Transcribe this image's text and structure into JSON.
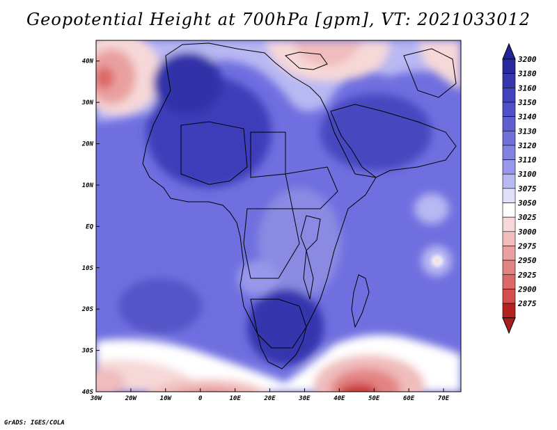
{
  "title": "Geopotential Height at 700hPa [gpm], VT: 2021033012",
  "credit": "GrADS: IGES/COLA",
  "colors": {
    "ocean_base": "#6f6fe0",
    "coast": "#000000"
  },
  "chart_data": {
    "type": "heatmap",
    "title": "Geopotential Height at 700hPa [gpm], VT: 2021033012",
    "xlim": [
      -30,
      75
    ],
    "ylim": [
      -40,
      45
    ],
    "x_ticks": [
      {
        "value": -30,
        "label": "30W"
      },
      {
        "value": -20,
        "label": "20W"
      },
      {
        "value": -10,
        "label": "10W"
      },
      {
        "value": 0,
        "label": "0"
      },
      {
        "value": 10,
        "label": "10E"
      },
      {
        "value": 20,
        "label": "20E"
      },
      {
        "value": 30,
        "label": "30E"
      },
      {
        "value": 40,
        "label": "40E"
      },
      {
        "value": 50,
        "label": "50E"
      },
      {
        "value": 60,
        "label": "60E"
      },
      {
        "value": 70,
        "label": "70E"
      }
    ],
    "y_ticks": [
      {
        "value": 40,
        "label": "40N"
      },
      {
        "value": 30,
        "label": "30N"
      },
      {
        "value": 20,
        "label": "20N"
      },
      {
        "value": 10,
        "label": "10N"
      },
      {
        "value": 0,
        "label": "EQ"
      },
      {
        "value": -10,
        "label": "10S"
      },
      {
        "value": -20,
        "label": "20S"
      },
      {
        "value": -30,
        "label": "30S"
      },
      {
        "value": -40,
        "label": "40S"
      }
    ],
    "colorbar": [
      {
        "value": 3200,
        "color": "#2a2a9c"
      },
      {
        "value": 3180,
        "color": "#3636ae"
      },
      {
        "value": 3160,
        "color": "#4343bf"
      },
      {
        "value": 3150,
        "color": "#5050c8"
      },
      {
        "value": 3140,
        "color": "#5f5fd0"
      },
      {
        "value": 3130,
        "color": "#7070d8"
      },
      {
        "value": 3120,
        "color": "#8282e0"
      },
      {
        "value": 3110,
        "color": "#9898ea"
      },
      {
        "value": 3100,
        "color": "#b8b8f2"
      },
      {
        "value": 3075,
        "color": "#e0e0fa"
      },
      {
        "value": 3050,
        "color": "#ffffff"
      },
      {
        "value": 3025,
        "color": "#f6d8d8"
      },
      {
        "value": 3000,
        "color": "#f0bcbc"
      },
      {
        "value": 2975,
        "color": "#eaa0a0"
      },
      {
        "value": 2950,
        "color": "#e38484"
      },
      {
        "value": 2925,
        "color": "#dc6868"
      },
      {
        "value": 2900,
        "color": "#d44e4e"
      },
      {
        "value": 2875,
        "color": "#b42222"
      }
    ],
    "colorbar_top_color": "#23239a",
    "colorbar_bottom_color": "#a81e1e"
  }
}
